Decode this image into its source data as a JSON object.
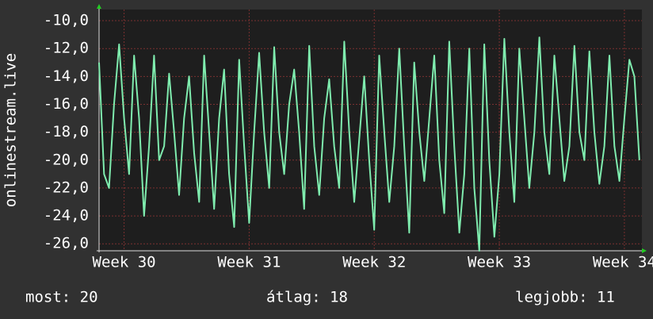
{
  "chart_data": {
    "type": "line",
    "ylabel": "onlinestream.live",
    "ylim": [
      -26.5,
      -9.2
    ],
    "yticks": [
      {
        "value": -10,
        "label": "-10,0"
      },
      {
        "value": -12,
        "label": "-12,0"
      },
      {
        "value": -14,
        "label": "-14,0"
      },
      {
        "value": -16,
        "label": "-16,0"
      },
      {
        "value": -18,
        "label": "-18,0"
      },
      {
        "value": -20,
        "label": "-20,0"
      },
      {
        "value": -22,
        "label": "-22,0"
      },
      {
        "value": -24,
        "label": "-24,0"
      },
      {
        "value": -26,
        "label": "-26,0"
      }
    ],
    "xlim": [
      29.8,
      34.14
    ],
    "xticks": [
      {
        "value": 30,
        "label": "Week 30"
      },
      {
        "value": 31,
        "label": "Week 31"
      },
      {
        "value": 32,
        "label": "Week 32"
      },
      {
        "value": 33,
        "label": "Week 33"
      },
      {
        "value": 34,
        "label": "Week 34"
      }
    ],
    "grid": true,
    "x": [
      29.8,
      29.84,
      29.88,
      29.92,
      29.96,
      30,
      30.04,
      30.08,
      30.12,
      30.16,
      30.2,
      30.24,
      30.28,
      30.32,
      30.36,
      30.4,
      30.44,
      30.48,
      30.52,
      30.56,
      30.6,
      30.64,
      30.68,
      30.72,
      30.76,
      30.8,
      30.84,
      30.88,
      30.92,
      30.96,
      31,
      31.04,
      31.08,
      31.12,
      31.16,
      31.2,
      31.24,
      31.28,
      31.32,
      31.36,
      31.4,
      31.44,
      31.48,
      31.52,
      31.56,
      31.6,
      31.64,
      31.68,
      31.72,
      31.76,
      31.8,
      31.84,
      31.88,
      31.92,
      31.96,
      32,
      32.04,
      32.08,
      32.12,
      32.16,
      32.2,
      32.24,
      32.28,
      32.32,
      32.36,
      32.4,
      32.44,
      32.48,
      32.52,
      32.56,
      32.6,
      32.64,
      32.68,
      32.72,
      32.76,
      32.8,
      32.84,
      32.88,
      32.92,
      32.96,
      33,
      33.04,
      33.08,
      33.12,
      33.16,
      33.2,
      33.24,
      33.28,
      33.32,
      33.36,
      33.4,
      33.44,
      33.48,
      33.52,
      33.56,
      33.6,
      33.64,
      33.68,
      33.72,
      33.76,
      33.8,
      33.84,
      33.88,
      33.92,
      33.96,
      34,
      34.04,
      34.08,
      34.12
    ],
    "series": [
      {
        "name": "onlinestream.live",
        "color": "#7fecae",
        "values": [
          -13,
          -21,
          -22,
          -16,
          -11.7,
          -17,
          -21,
          -12.5,
          -17,
          -24,
          -19,
          -12.5,
          -20,
          -19,
          -13.8,
          -18,
          -22.5,
          -17,
          -14,
          -19.5,
          -23,
          -12.5,
          -18,
          -23.5,
          -17,
          -13.5,
          -21,
          -24.8,
          -12.8,
          -19,
          -24.5,
          -18,
          -12.3,
          -18,
          -22,
          -11.9,
          -18,
          -21,
          -16,
          -13.5,
          -18,
          -23.5,
          -11.8,
          -19,
          -22.5,
          -17,
          -14.2,
          -19,
          -22,
          -11.5,
          -18,
          -23,
          -18.5,
          -14,
          -20,
          -25,
          -12.5,
          -18,
          -23,
          -19,
          -12,
          -19,
          -25.2,
          -13,
          -18,
          -21.5,
          -17,
          -12.5,
          -20,
          -23.8,
          -11.5,
          -19,
          -25.2,
          -21,
          -12,
          -22,
          -26.5,
          -11.7,
          -20,
          -25.5,
          -21,
          -11.3,
          -18,
          -23,
          -12,
          -17,
          -22,
          -18,
          -11.2,
          -18,
          -21,
          -12.5,
          -17,
          -21.5,
          -19,
          -11.8,
          -18,
          -20,
          -12.2,
          -18,
          -21.7,
          -19,
          -12.5,
          -19,
          -21.5,
          -17,
          -12.8,
          -14,
          -20
        ]
      }
    ],
    "stats": [
      "most: 20",
      "átlag: 18",
      "legjobb: 11"
    ]
  }
}
